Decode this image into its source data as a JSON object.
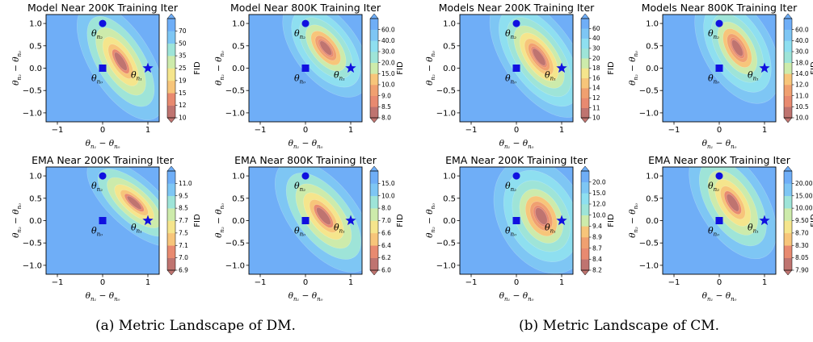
{
  "captions": {
    "a": "(a) Metric Landscape of DM.",
    "b": "(b) Metric Landscape of CM."
  },
  "chart_data": [
    {
      "type": "contour",
      "title": "Model Near 200K Training Iter",
      "xlabel": "θn1 − θn0",
      "ylabel": "θn2 − θn0",
      "colorbar_label": "FID",
      "xlim": [
        -1.25,
        1.25
      ],
      "ylim": [
        -1.2,
        1.2
      ],
      "xticks": [
        -1,
        0,
        1
      ],
      "yticks": [
        -1.0,
        -0.5,
        0.0,
        0.5,
        1.0
      ],
      "levels": [
        "10",
        "12",
        "15",
        "19",
        "25",
        "35",
        "50",
        "70"
      ],
      "minimum": {
        "x": 0.4,
        "y": 0.15
      },
      "markers": [
        {
          "shape": "circle",
          "x": 0,
          "y": 1,
          "label": "θn2"
        },
        {
          "shape": "square",
          "x": 0,
          "y": 0,
          "label": "θn0"
        },
        {
          "shape": "star",
          "x": 1,
          "y": 0,
          "label": "θn1"
        }
      ]
    },
    {
      "type": "contour",
      "title": "Model Near 800K Training Iter",
      "xlabel": "θn1 − θn0",
      "ylabel": "θn2 − θn0",
      "colorbar_label": "FID",
      "xlim": [
        -1.25,
        1.25
      ],
      "ylim": [
        -1.2,
        1.2
      ],
      "xticks": [
        -1,
        0,
        1
      ],
      "yticks": [
        -1.0,
        -0.5,
        0.0,
        0.5,
        1.0
      ],
      "levels": [
        "8.0",
        "8.5",
        "9.0",
        "10.0",
        "15.0",
        "20.0",
        "30.0",
        "40.0",
        "60.0"
      ],
      "minimum": {
        "x": 0.45,
        "y": 0.45
      },
      "markers": [
        {
          "shape": "circle",
          "x": 0,
          "y": 1,
          "label": "θn2"
        },
        {
          "shape": "square",
          "x": 0,
          "y": 0,
          "label": "θn0"
        },
        {
          "shape": "star",
          "x": 1,
          "y": 0,
          "label": "θn1"
        }
      ]
    },
    {
      "type": "contour",
      "title": "Models Near 200K Training Iter",
      "xlabel": "θn1 − θn0",
      "ylabel": "θn2 − θn0",
      "colorbar_label": "FID",
      "xlim": [
        -1.25,
        1.25
      ],
      "ylim": [
        -1.2,
        1.2
      ],
      "xticks": [
        -1,
        0,
        1
      ],
      "yticks": [
        -1.0,
        -0.5,
        0.0,
        0.5,
        1.0
      ],
      "levels": [
        "10",
        "11",
        "12",
        "14",
        "16",
        "18",
        "20",
        "30",
        "40",
        "60"
      ],
      "minimum": {
        "x": 0.5,
        "y": 0.25
      },
      "markers": [
        {
          "shape": "circle",
          "x": 0,
          "y": 1,
          "label": "θn2"
        },
        {
          "shape": "square",
          "x": 0,
          "y": 0,
          "label": "θn0"
        },
        {
          "shape": "star",
          "x": 1,
          "y": 0,
          "label": "θn1"
        }
      ]
    },
    {
      "type": "contour",
      "title": "Models Near 800K Training Iter",
      "xlabel": "θn1 − θn0",
      "ylabel": "θn2 − θn0",
      "colorbar_label": "FID",
      "xlim": [
        -1.25,
        1.25
      ],
      "ylim": [
        -1.2,
        1.2
      ],
      "xticks": [
        -1,
        0,
        1
      ],
      "yticks": [
        -1.0,
        -0.5,
        0.0,
        0.5,
        1.0
      ],
      "levels": [
        "10.0",
        "10.5",
        "11.0",
        "12.0",
        "14.0",
        "18.0",
        "30.0",
        "40.0",
        "60.0"
      ],
      "minimum": {
        "x": 0.4,
        "y": 0.45
      },
      "markers": [
        {
          "shape": "circle",
          "x": 0,
          "y": 1,
          "label": "θn2"
        },
        {
          "shape": "square",
          "x": 0,
          "y": 0,
          "label": "θn0"
        },
        {
          "shape": "star",
          "x": 1,
          "y": 0,
          "label": "θn1"
        }
      ]
    },
    {
      "type": "contour",
      "title": "EMA Near 200K Training Iter",
      "xlabel": "θn1 − θn0",
      "ylabel": "θn2 − θn0",
      "colorbar_label": "FID",
      "xlim": [
        -1.25,
        1.25
      ],
      "ylim": [
        -1.2,
        1.2
      ],
      "xticks": [
        -1,
        0,
        1
      ],
      "yticks": [
        -1.0,
        -0.5,
        0.0,
        0.5,
        1.0
      ],
      "levels": [
        "6.9",
        "7.0",
        "7.1",
        "7.5",
        "7.7",
        "8.5",
        "9.5",
        "11.0"
      ],
      "minimum": {
        "x": 0.7,
        "y": 0.4
      },
      "markers": [
        {
          "shape": "circle",
          "x": 0,
          "y": 1,
          "label": "θn2"
        },
        {
          "shape": "square",
          "x": 0,
          "y": 0,
          "label": "θn0"
        },
        {
          "shape": "star",
          "x": 1,
          "y": 0,
          "label": "θn1"
        }
      ]
    },
    {
      "type": "contour",
      "title": "EMA Near 800K Training Iter",
      "xlabel": "θn1 − θn0",
      "ylabel": "θn2 − θn0",
      "colorbar_label": "FID",
      "xlim": [
        -1.25,
        1.25
      ],
      "ylim": [
        -1.2,
        1.2
      ],
      "xticks": [
        -1,
        0,
        1
      ],
      "yticks": [
        -1.0,
        -0.5,
        0.0,
        0.5,
        1.0
      ],
      "levels": [
        "6.0",
        "6.2",
        "6.4",
        "6.6",
        "7.0",
        "8.0",
        "10.0",
        "15.0"
      ],
      "minimum": {
        "x": 0.4,
        "y": 0.1
      },
      "markers": [
        {
          "shape": "circle",
          "x": 0,
          "y": 1,
          "label": "θn2"
        },
        {
          "shape": "square",
          "x": 0,
          "y": 0,
          "label": "θn0"
        },
        {
          "shape": "star",
          "x": 1,
          "y": 0,
          "label": "θn1"
        }
      ]
    },
    {
      "type": "contour",
      "title": "EMA Near 200K Training Iter",
      "xlabel": "θn1 − θn0",
      "ylabel": "θn2 − θn0",
      "colorbar_label": "FID",
      "xlim": [
        -1.25,
        1.25
      ],
      "ylim": [
        -1.2,
        1.2
      ],
      "xticks": [
        -1,
        0,
        1
      ],
      "yticks": [
        -1.0,
        -0.5,
        0.0,
        0.5,
        1.0
      ],
      "levels": [
        "8.2",
        "8.4",
        "8.7",
        "8.9",
        "9.4",
        "10.0",
        "12.0",
        "15.0",
        "20.0"
      ],
      "minimum": {
        "x": 0.55,
        "y": 0.1
      },
      "markers": [
        {
          "shape": "circle",
          "x": 0,
          "y": 1,
          "label": "θn2"
        },
        {
          "shape": "square",
          "x": 0,
          "y": 0,
          "label": "θn0"
        },
        {
          "shape": "star",
          "x": 1,
          "y": 0,
          "label": "θn1"
        }
      ]
    },
    {
      "type": "contour",
      "title": "EMA Near 800K Training Iter",
      "xlabel": "θn1 − θn0",
      "ylabel": "θn2 − θn0",
      "colorbar_label": "FID",
      "xlim": [
        -1.25,
        1.25
      ],
      "ylim": [
        -1.2,
        1.2
      ],
      "xticks": [
        -1,
        0,
        1
      ],
      "yticks": [
        -1.0,
        -0.5,
        0.0,
        0.5,
        1.0
      ],
      "levels": [
        "7.90",
        "8.05",
        "8.30",
        "8.70",
        "9.50",
        "10.00",
        "15.00",
        "20.00"
      ],
      "minimum": {
        "x": 0.3,
        "y": 0.4
      },
      "markers": [
        {
          "shape": "circle",
          "x": 0,
          "y": 1,
          "label": "θn2"
        },
        {
          "shape": "square",
          "x": 0,
          "y": 0,
          "label": "θn0"
        },
        {
          "shape": "star",
          "x": 1,
          "y": 0,
          "label": "θn1"
        }
      ]
    }
  ]
}
